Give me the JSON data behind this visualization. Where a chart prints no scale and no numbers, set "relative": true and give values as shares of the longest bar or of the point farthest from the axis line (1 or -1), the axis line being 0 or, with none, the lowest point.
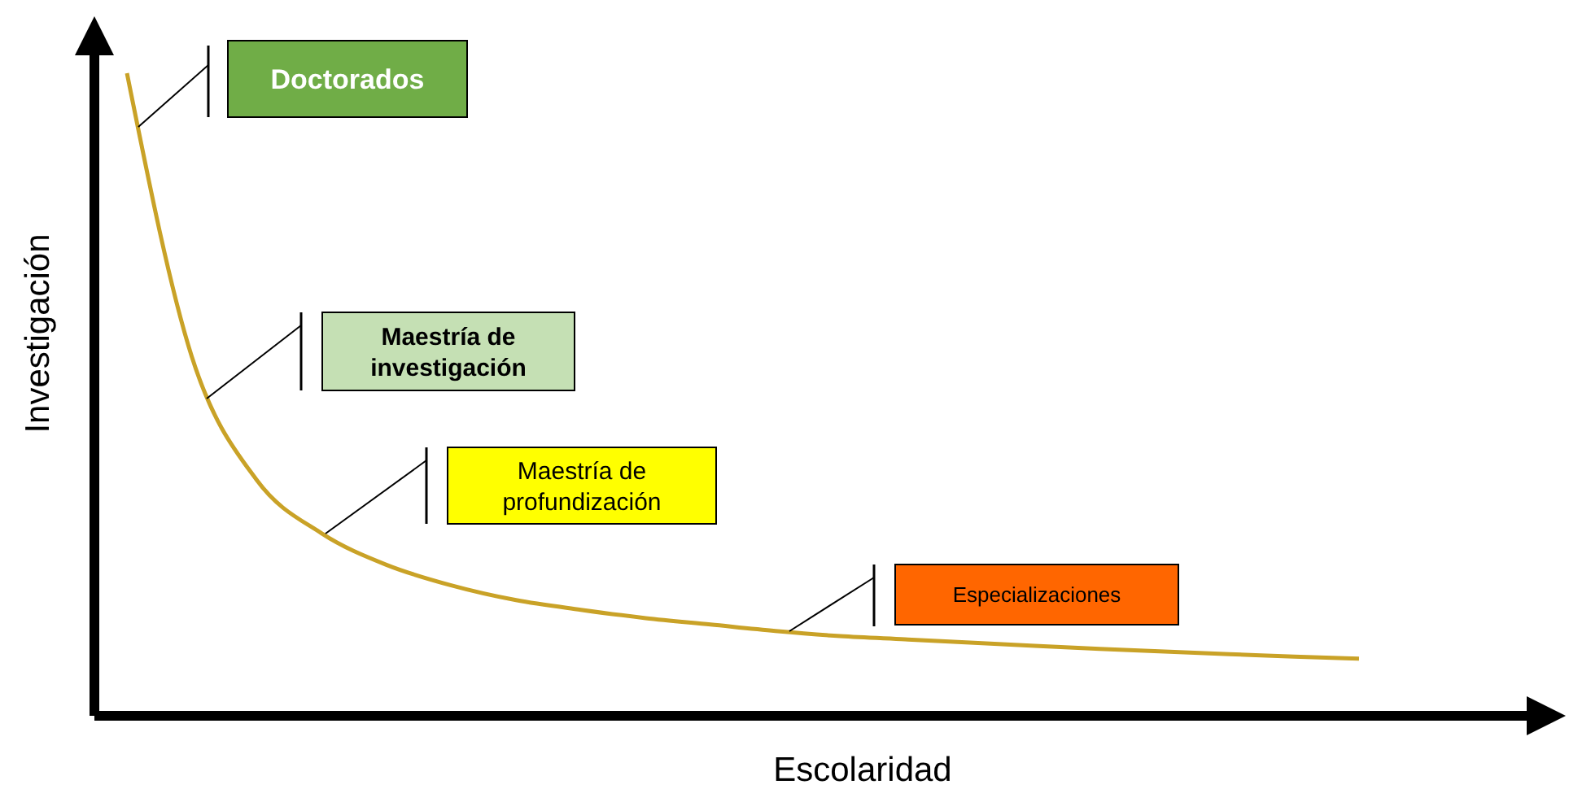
{
  "chart_data": {
    "type": "line",
    "relative": true,
    "xlabel": "Escolaridad",
    "ylabel": "Investigación",
    "categories": [
      null,
      null,
      null,
      null,
      null,
      null,
      null,
      null,
      null,
      null,
      null,
      null,
      null,
      null,
      null,
      null,
      null,
      null,
      null,
      null
    ],
    "series": [
      {
        "color": "#c9a227",
        "values": [
          1.0,
          0.559,
          0.367,
          0.284,
          0.235,
          0.203,
          0.18,
          0.165,
          0.152,
          0.142,
          0.132,
          0.124,
          0.119,
          0.114,
          0.109,
          0.104,
          0.1,
          0.096,
          0.092,
          0.089
        ]
      }
    ],
    "annotations": [
      "Doctorados",
      "Maestría de investigación",
      "Maestría de profundización",
      "Especializaciones"
    ],
    "marker": "none",
    "line_style": "solid"
  }
}
